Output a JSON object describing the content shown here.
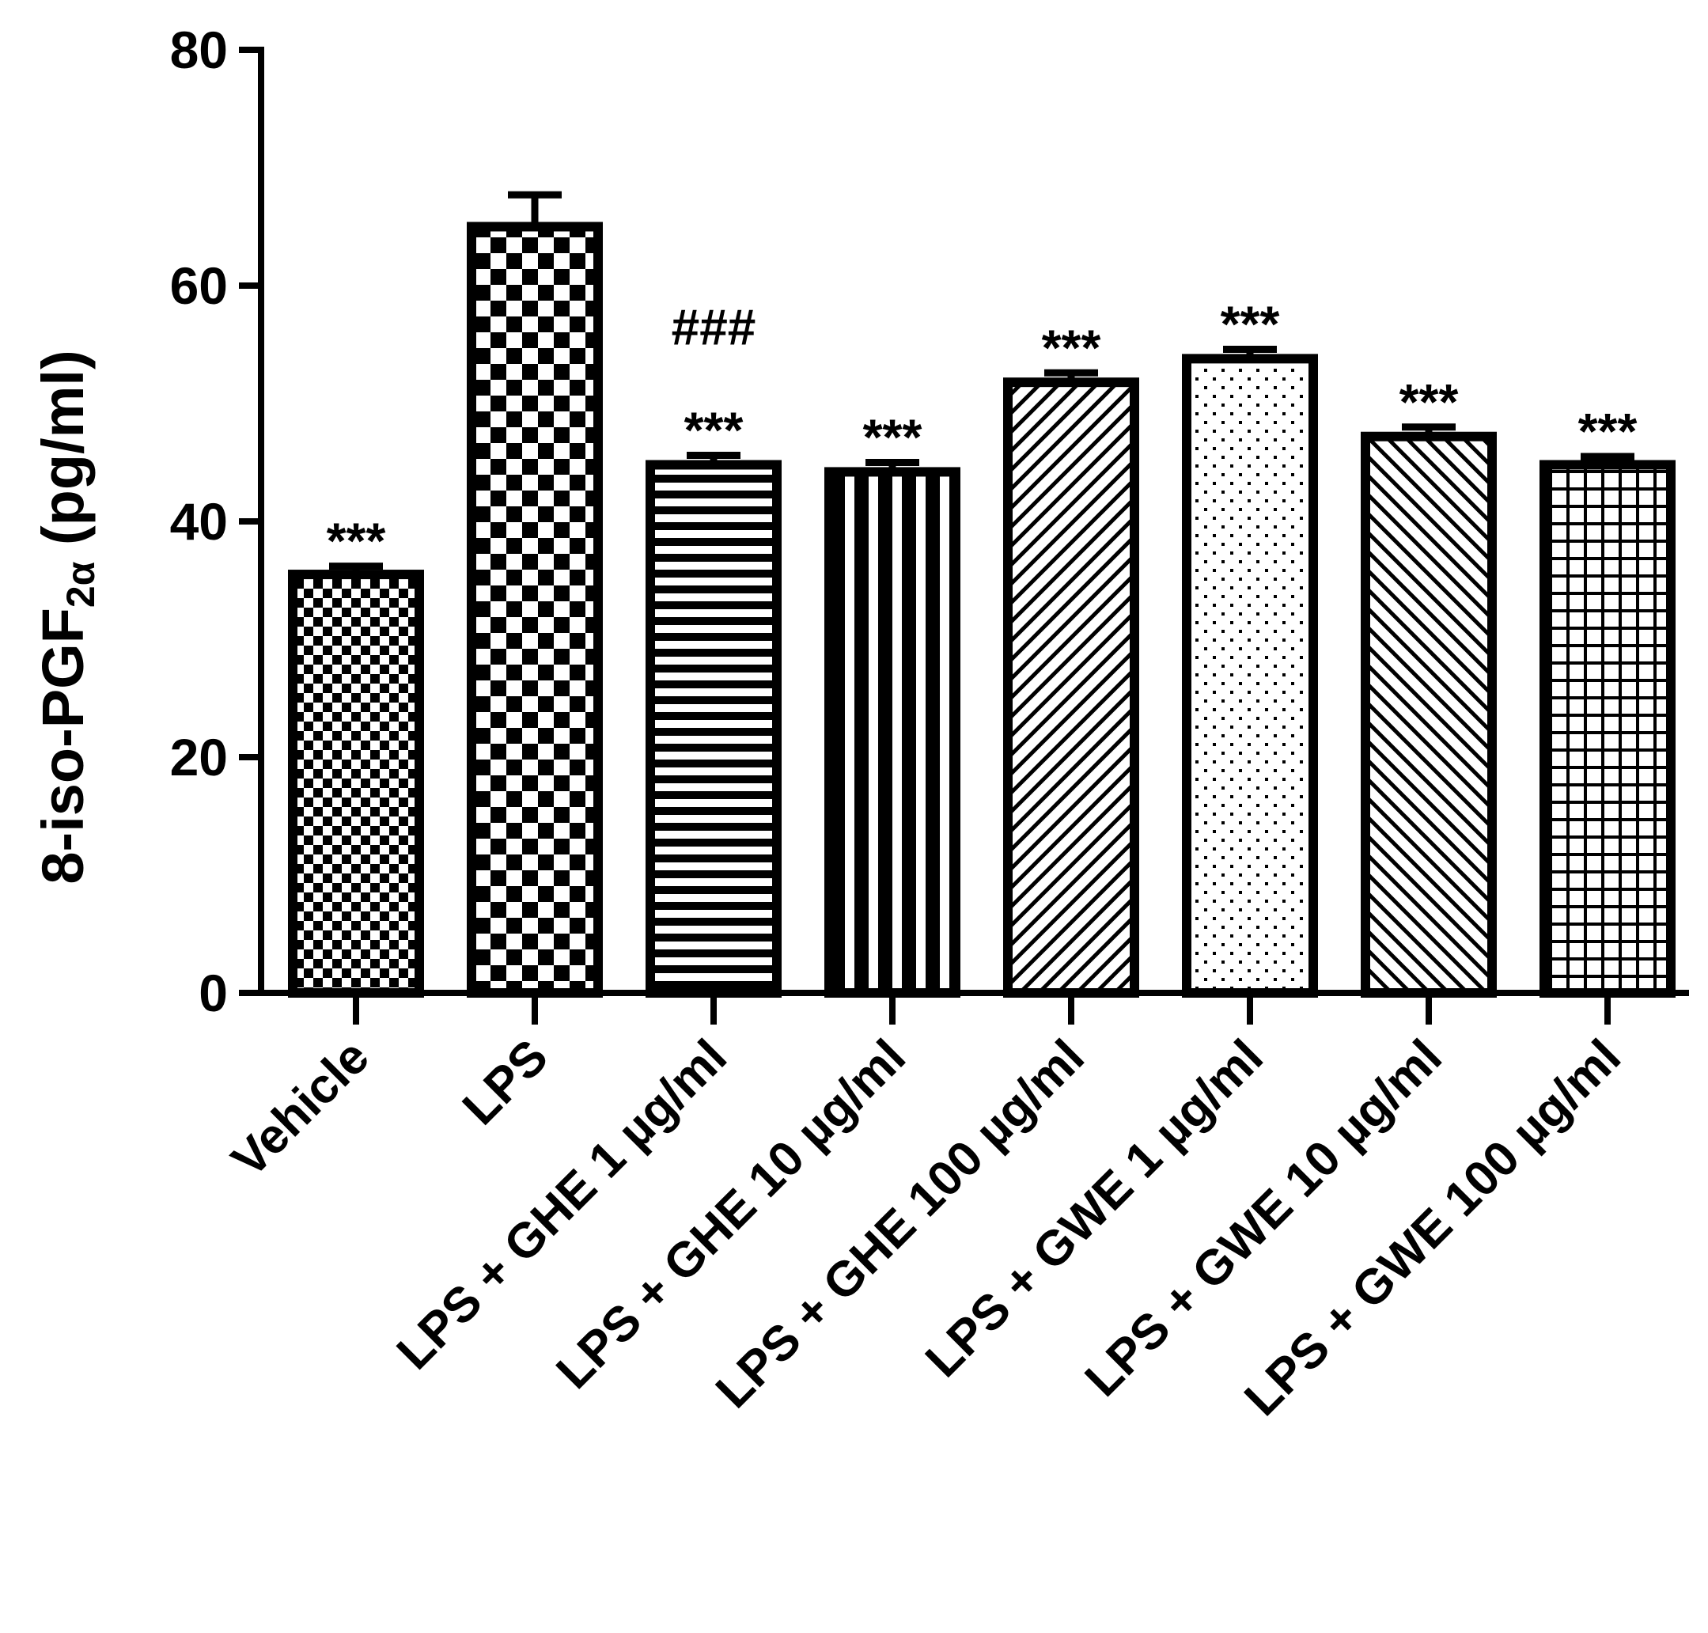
{
  "chart_data": {
    "type": "bar",
    "title": "",
    "xlabel": "",
    "ylabel": {
      "main": "8-iso-PGF",
      "subscript": "2α",
      "unit": " (pg/ml)"
    },
    "ylim": [
      0,
      80
    ],
    "yticks": [
      0,
      20,
      40,
      60,
      80
    ],
    "categories": [
      "Vehicle",
      "LPS",
      "LPS + GHE 1 µg/ml",
      "LPS + GHE 10 µg/ml",
      "LPS + GHE 100 µg/ml",
      "LPS + GWE 1 µg/ml",
      "LPS + GWE 10 µg/ml",
      "LPS + GWE 100 µg/ml"
    ],
    "values": [
      35.5,
      65.0,
      44.8,
      44.2,
      51.8,
      53.8,
      47.2,
      44.8
    ],
    "errors": [
      0.7,
      2.7,
      0.8,
      0.8,
      0.8,
      0.8,
      0.8,
      0.7
    ],
    "patterns": [
      "fine-checker",
      "checker",
      "horizontal-lines",
      "vertical-lines",
      "diagonal-up",
      "dots",
      "diagonal-down",
      "grid"
    ],
    "annotations": [
      [
        "***"
      ],
      [],
      [
        "***",
        "###"
      ],
      [
        "***"
      ],
      [
        "***"
      ],
      [
        "***"
      ],
      [
        "***"
      ],
      [
        "***"
      ]
    ]
  }
}
